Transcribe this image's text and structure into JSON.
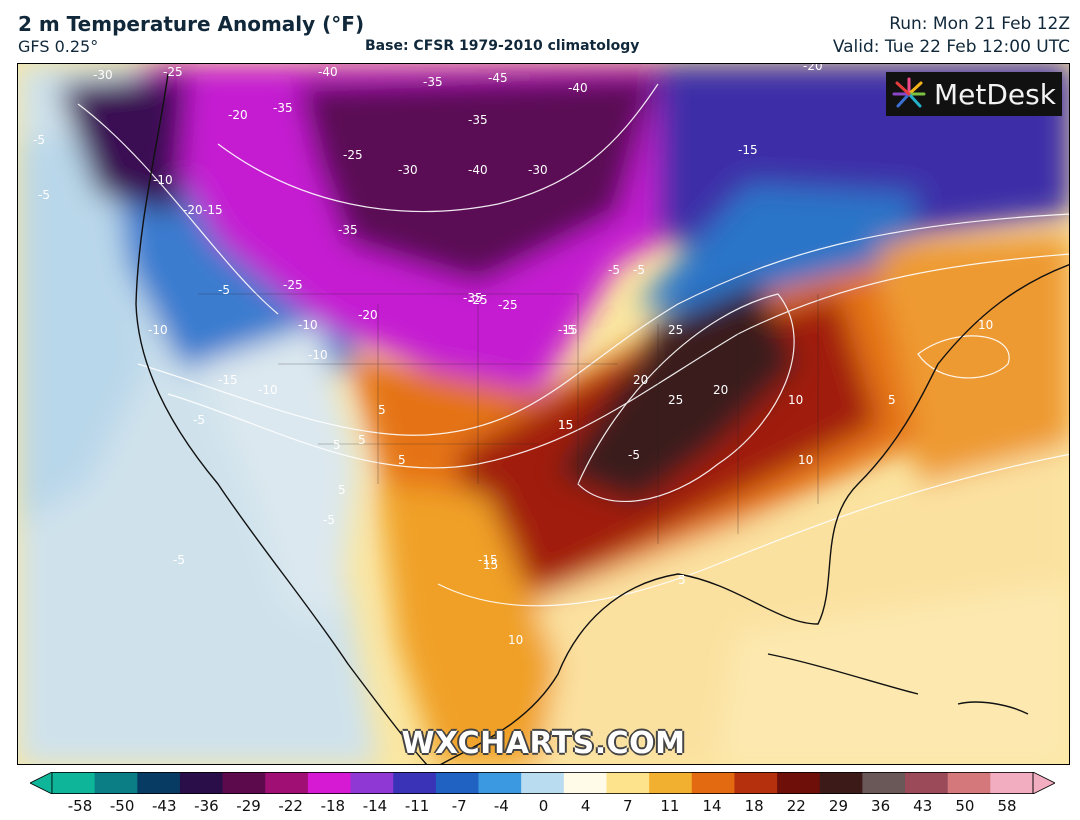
{
  "header": {
    "title": "2 m Temperature Anomaly (°F)",
    "model": "GFS 0.25°",
    "base": "Base: CFSR 1979-2010 climatology",
    "run": "Run: Mon 21 Feb 12Z",
    "valid": "Valid: Tue 22 Feb 12:00 UTC"
  },
  "map": {
    "logo_text": "MetDesk",
    "watermark": "WXCHARTS.COM",
    "contour_labels": [
      "-30",
      "-25",
      "-40",
      "-45",
      "-35",
      "-40",
      "-20",
      "-5",
      "-20",
      "-35",
      "-40",
      "-35",
      "-30",
      "-30",
      "-25",
      "-15",
      "-5",
      "-10",
      "-15",
      "-20",
      "-35",
      "-25",
      "-35",
      "-15",
      "-5",
      "-10",
      "-5",
      "-10",
      "-5",
      "-15",
      "-25",
      "-20",
      "-25",
      "-10",
      "-10",
      "-5",
      "-5",
      "-15",
      "-5",
      "-5",
      "-5",
      "5",
      "5",
      "5",
      "5",
      "5",
      "10",
      "15",
      "20",
      "25",
      "20",
      "25",
      "15",
      "10",
      "5",
      "10",
      "5",
      "15",
      "10"
    ],
    "colors": {
      "extreme_cold": "#3d1050",
      "cold_magenta": "#c21ad0",
      "cool_blue": "#2a78c8",
      "near_zero": "#e8ecef",
      "warm_orange": "#e07a10",
      "hot_red": "#9a1a0a",
      "extreme_warm": "#3c2020"
    }
  },
  "colorbar": {
    "ticks": [
      "-58",
      "-50",
      "-43",
      "-36",
      "-29",
      "-22",
      "-18",
      "-14",
      "-11",
      "-7",
      "-4",
      "0",
      "4",
      "7",
      "11",
      "14",
      "18",
      "22",
      "29",
      "36",
      "43",
      "50",
      "58"
    ],
    "colors": [
      "#0fb598",
      "#0a7d85",
      "#073b63",
      "#2a0e4a",
      "#5d0a4c",
      "#a01074",
      "#d61ad3",
      "#9038d4",
      "#3a33b8",
      "#1f62c2",
      "#3a99e0",
      "#b9dcf0",
      "#fffbe8",
      "#fde48c",
      "#f2b030",
      "#e36a10",
      "#b5300c",
      "#6e0f0a",
      "#3b1a18",
      "#6a5858",
      "#9b4a5a",
      "#d4787c",
      "#f2aec0"
    ]
  }
}
